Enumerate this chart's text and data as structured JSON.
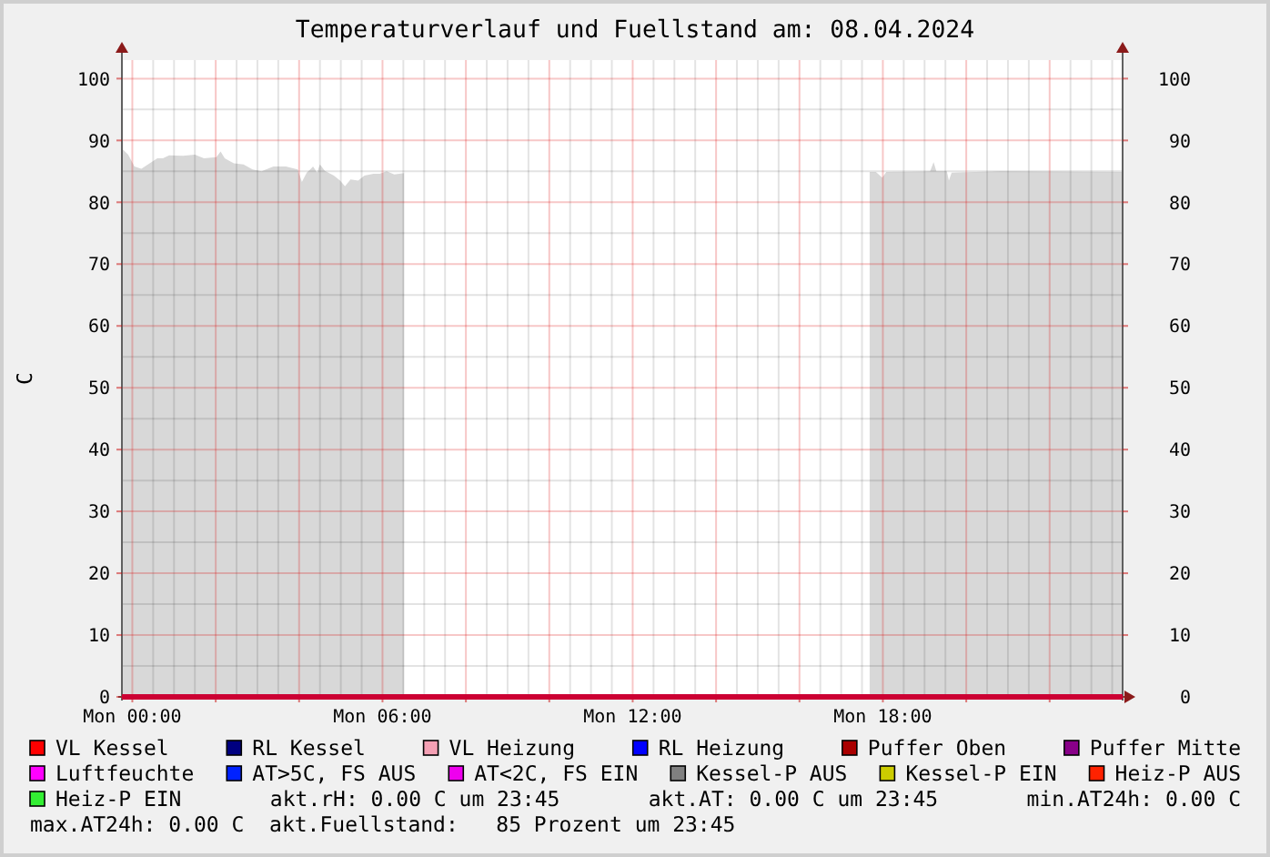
{
  "chart_data": {
    "type": "line",
    "title": "Temperaturverlauf und Fuellstand am: 08.04.2024",
    "ylabel": "C",
    "x": [
      "2024-04-07T23:45",
      "2024-04-08T23:45"
    ],
    "xlim": [
      "2024-04-07T23:45",
      "2024-04-08T23:45"
    ],
    "xticks": [
      {
        "value": "2024-04-08T00:00",
        "label": "Mon 00:00"
      },
      {
        "value": "2024-04-08T02:00",
        "label": null
      },
      {
        "value": "2024-04-08T04:00",
        "label": null
      },
      {
        "value": "2024-04-08T06:00",
        "label": "Mon 06:00"
      },
      {
        "value": "2024-04-08T08:00",
        "label": null
      },
      {
        "value": "2024-04-08T10:00",
        "label": null
      },
      {
        "value": "2024-04-08T12:00",
        "label": "Mon 12:00"
      },
      {
        "value": "2024-04-08T14:00",
        "label": null
      },
      {
        "value": "2024-04-08T16:00",
        "label": null
      },
      {
        "value": "2024-04-08T18:00",
        "label": "Mon 18:00"
      },
      {
        "value": "2024-04-08T20:00",
        "label": null
      },
      {
        "value": "2024-04-08T22:00",
        "label": null
      }
    ],
    "ylim": [
      0,
      103
    ],
    "yticks": [
      0,
      10,
      20,
      30,
      40,
      50,
      60,
      70,
      80,
      90,
      100
    ],
    "y2lim": [
      0,
      103
    ],
    "y2ticks": [
      0,
      10,
      20,
      30,
      40,
      50,
      60,
      70,
      80,
      90,
      100
    ],
    "grid": true,
    "legend": "bottom",
    "series": [
      {
        "type": "area",
        "color": "#d8d8d8",
        "x": [
          "2024-04-07T23:45",
          "2024-04-07T23:54",
          "2024-04-08T00:03",
          "2024-04-08T00:13",
          "2024-04-08T00:25",
          "2024-04-08T00:36",
          "2024-04-08T00:44",
          "2024-04-08T00:53",
          "2024-04-08T01:13",
          "2024-04-08T01:30",
          "2024-04-08T01:43",
          "2024-04-08T02:01",
          "2024-04-08T02:07",
          "2024-04-08T02:13",
          "2024-04-08T02:26",
          "2024-04-08T02:40",
          "2024-04-08T02:53",
          "2024-04-08T03:06",
          "2024-04-08T03:23",
          "2024-04-08T03:41",
          "2024-04-08T03:58",
          "2024-04-08T04:04",
          "2024-04-08T04:11",
          "2024-04-08T04:16",
          "2024-04-08T04:20",
          "2024-04-08T04:26",
          "2024-04-08T04:30",
          "2024-04-08T04:37",
          "2024-04-08T04:50",
          "2024-04-08T04:59",
          "2024-04-08T05:06",
          "2024-04-08T05:14",
          "2024-04-08T05:25",
          "2024-04-08T05:34",
          "2024-04-08T05:47",
          "2024-04-08T05:56",
          "2024-04-08T06:06",
          "2024-04-08T06:17",
          "2024-04-08T06:31",
          "2024-04-08T12:00",
          "2024-04-08T17:41",
          "2024-04-08T17:50",
          "2024-04-08T17:59",
          "2024-04-08T18:05",
          "2024-04-08T19:08",
          "2024-04-08T19:13",
          "2024-04-08T19:17",
          "2024-04-08T19:32",
          "2024-04-08T19:35",
          "2024-04-08T19:39",
          "2024-04-08T20:49",
          "2024-04-08T23:43",
          "2024-04-08T23:45"
        ],
        "values": [
          88.7,
          87.7,
          85.8,
          85.4,
          86.3,
          87.1,
          87.1,
          87.6,
          87.5,
          87.7,
          87.1,
          87.3,
          88.2,
          87.1,
          86.3,
          86.1,
          85.3,
          85.0,
          85.8,
          85.8,
          85.3,
          83.3,
          84.8,
          85.3,
          85.8,
          84.8,
          86.1,
          85.1,
          84.3,
          83.5,
          82.6,
          83.7,
          83.5,
          84.3,
          84.6,
          84.6,
          85.0,
          84.5,
          84.7,
          null,
          84.9,
          84.9,
          84.0,
          84.9,
          85.0,
          86.5,
          85.0,
          85.0,
          83.5,
          84.8,
          85.0,
          84.9,
          84.9
        ]
      },
      {
        "color": "#cc0033",
        "values": [
          0,
          0
        ]
      },
      {
        "name": "VL Kessel",
        "color": "#ff0000",
        "values": [
          null,
          null
        ]
      },
      {
        "name": "RL Kessel",
        "color": "#000080",
        "values": [
          null,
          null
        ]
      },
      {
        "name": "VL Heizung",
        "color": "#f4a0b4",
        "values": [
          null,
          null
        ]
      },
      {
        "name": "RL Heizung",
        "color": "#0000ff",
        "values": [
          null,
          null
        ]
      },
      {
        "name": "Puffer Oben",
        "color": "#aa0000",
        "values": [
          null,
          null
        ]
      },
      {
        "name": "Puffer Mitte",
        "color": "#880088",
        "values": [
          null,
          null
        ]
      },
      {
        "name": "Luftfeuchte",
        "color": "#ff00ff",
        "values": [
          null,
          null
        ]
      },
      {
        "name": "AT>5C, FS AUS",
        "color": "#0022ff",
        "values": [
          null,
          null
        ]
      },
      {
        "name": "AT<2C, FS EIN",
        "color": "#ee00ee",
        "values": [
          null,
          null
        ]
      },
      {
        "name": "Kessel-P AUS",
        "color": "#808080",
        "values": [
          null,
          null
        ]
      },
      {
        "name": "Kessel-P EIN",
        "color": "#cccc00",
        "values": [
          null,
          null
        ]
      },
      {
        "name": "Heiz-P AUS",
        "color": "#ff2200",
        "values": [
          null,
          null
        ]
      },
      {
        "name": "Heiz-P EIN",
        "color": "#33ee33",
        "values": [
          null,
          null
        ]
      }
    ],
    "annotations": [
      "akt.rH: 0.00 C um 23:45",
      "akt.AT: 0.00 C um 23:45",
      "min.AT24h: 0.00 C",
      "max.AT24h: 0.00 C",
      "akt.Fuellstand:   85 Prozent um 23:45"
    ]
  }
}
